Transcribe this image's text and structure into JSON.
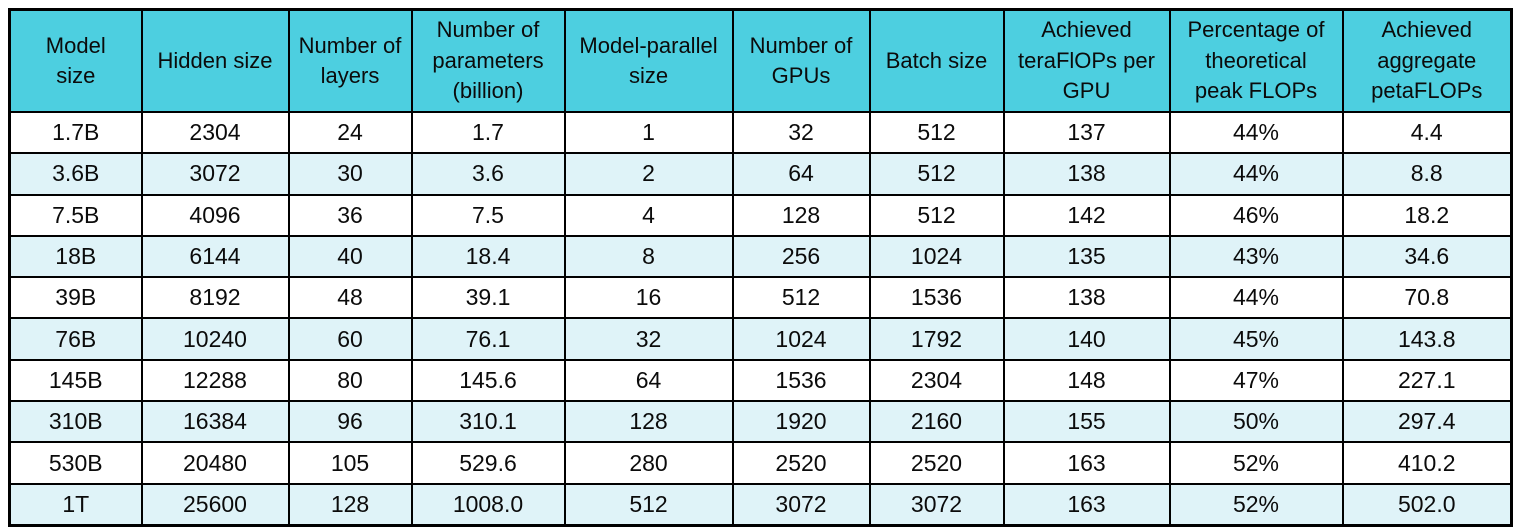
{
  "colors": {
    "header_bg": "#4dcfe0",
    "row_bg": "#ffffff",
    "row_alt_bg": "#dff3f8",
    "border": "#000000",
    "text": "#0b0b0b"
  },
  "chart_data": {
    "type": "table",
    "title": "",
    "columns": [
      "Model\nsize",
      "Hidden size",
      "Number of\nlayers",
      "Number of\nparameters\n(billion)",
      "Model-parallel\nsize",
      "Number of\nGPUs",
      "Batch size",
      "Achieved\nteraFlOPs per\nGPU",
      "Percentage of\ntheoretical\npeak FLOPs",
      "Achieved\naggregate\npetaFLOPs"
    ],
    "columns_plain": [
      "Model size",
      "Hidden size",
      "Number of layers",
      "Number of parameters (billion)",
      "Model-parallel size",
      "Number of GPUs",
      "Batch size",
      "Achieved teraFlOPs per GPU",
      "Percentage of theoretical peak FLOPs",
      "Achieved aggregate petaFLOPs"
    ],
    "rows": [
      [
        "1.7B",
        "2304",
        "24",
        "1.7",
        "1",
        "32",
        "512",
        "137",
        "44%",
        "4.4"
      ],
      [
        "3.6B",
        "3072",
        "30",
        "3.6",
        "2",
        "64",
        "512",
        "138",
        "44%",
        "8.8"
      ],
      [
        "7.5B",
        "4096",
        "36",
        "7.5",
        "4",
        "128",
        "512",
        "142",
        "46%",
        "18.2"
      ],
      [
        "18B",
        "6144",
        "40",
        "18.4",
        "8",
        "256",
        "1024",
        "135",
        "43%",
        "34.6"
      ],
      [
        "39B",
        "8192",
        "48",
        "39.1",
        "16",
        "512",
        "1536",
        "138",
        "44%",
        "70.8"
      ],
      [
        "76B",
        "10240",
        "60",
        "76.1",
        "32",
        "1024",
        "1792",
        "140",
        "45%",
        "143.8"
      ],
      [
        "145B",
        "12288",
        "80",
        "145.6",
        "64",
        "1536",
        "2304",
        "148",
        "47%",
        "227.1"
      ],
      [
        "310B",
        "16384",
        "96",
        "310.1",
        "128",
        "1920",
        "2160",
        "155",
        "50%",
        "297.4"
      ],
      [
        "530B",
        "20480",
        "105",
        "529.6",
        "280",
        "2520",
        "2520",
        "163",
        "52%",
        "410.2"
      ],
      [
        "1T",
        "25600",
        "128",
        "1008.0",
        "512",
        "3072",
        "3072",
        "163",
        "52%",
        "502.0"
      ]
    ]
  }
}
